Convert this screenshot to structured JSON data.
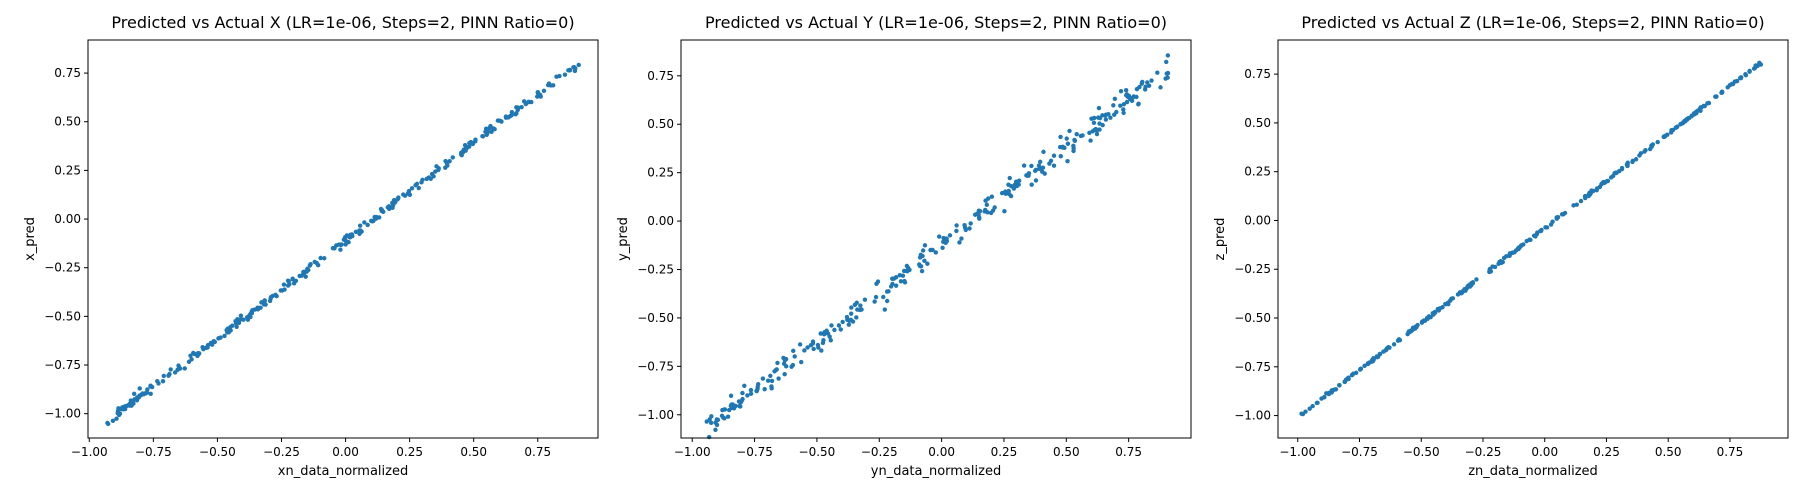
{
  "chart_data": [
    {
      "type": "scatter",
      "title": "Predicted vs Actual X (LR=1e-06, Steps=2, PINN Ratio=0)",
      "xlabel": "xn_data_normalized",
      "ylabel": "x_pred",
      "xlim": [
        -1.005,
        0.985
      ],
      "ylim": [
        -1.125,
        0.92
      ],
      "xticks": [
        -1.0,
        -0.75,
        -0.5,
        -0.25,
        0.0,
        0.25,
        0.5,
        0.75
      ],
      "xticklabels": [
        "−1.00",
        "−0.75",
        "−0.50",
        "−0.25",
        "0.00",
        "0.25",
        "0.50",
        "0.75"
      ],
      "yticks": [
        -1.0,
        -0.75,
        -0.5,
        -0.25,
        0.0,
        0.25,
        0.5,
        0.75
      ],
      "yticklabels": [
        "−1.00",
        "−0.75",
        "−0.50",
        "−0.25",
        "0.00",
        "0.25",
        "0.50",
        "0.75"
      ],
      "grid": false,
      "color": "#1f77b4",
      "point_count": 300,
      "x_range": [
        -0.93,
        0.91
      ],
      "slope": 1.0,
      "intercept": -0.11,
      "noise": 0.012,
      "seed": 11
    },
    {
      "type": "scatter",
      "title": "Predicted vs Actual Y (LR=1e-06, Steps=2, PINN Ratio=0)",
      "xlabel": "yn_data_normalized",
      "ylabel": "y_pred",
      "xlim": [
        -1.045,
        1.0
      ],
      "ylim": [
        -1.12,
        0.935
      ],
      "xticks": [
        -1.0,
        -0.75,
        -0.5,
        -0.25,
        0.0,
        0.25,
        0.5,
        0.75
      ],
      "xticklabels": [
        "−1.00",
        "−0.75",
        "−0.50",
        "−0.25",
        "0.00",
        "0.25",
        "0.50",
        "0.75"
      ],
      "yticks": [
        -1.0,
        -0.75,
        -0.5,
        -0.25,
        0.0,
        0.25,
        0.5,
        0.75
      ],
      "yticklabels": [
        "−1.00",
        "−0.75",
        "−0.50",
        "−0.25",
        "0.00",
        "0.25",
        "0.50",
        "0.75"
      ],
      "grid": false,
      "color": "#1f77b4",
      "point_count": 300,
      "x_range": [
        -0.95,
        0.91
      ],
      "slope": 1.0,
      "intercept": -0.12,
      "noise": 0.03,
      "seed": 23
    },
    {
      "type": "scatter",
      "title": "Predicted vs Actual Z (LR=1e-06, Steps=2, PINN Ratio=0)",
      "xlabel": "zn_data_normalized",
      "ylabel": "z_pred",
      "xlim": [
        -1.08,
        0.985
      ],
      "ylim": [
        -1.115,
        0.925
      ],
      "xticks": [
        -1.0,
        -0.75,
        -0.5,
        -0.25,
        0.0,
        0.25,
        0.5,
        0.75
      ],
      "xticklabels": [
        "−1.00",
        "−0.75",
        "−0.50",
        "−0.25",
        "0.00",
        "0.25",
        "0.50",
        "0.75"
      ],
      "yticks": [
        -1.0,
        -0.75,
        -0.5,
        -0.25,
        0.0,
        0.25,
        0.5,
        0.75
      ],
      "yticklabels": [
        "−1.00",
        "−0.75",
        "−0.50",
        "−0.25",
        "0.00",
        "0.25",
        "0.50",
        "0.75"
      ],
      "grid": false,
      "color": "#1f77b4",
      "point_count": 300,
      "x_range": [
        -0.99,
        0.88
      ],
      "slope": 0.97,
      "intercept": -0.04,
      "noise": 0.004,
      "seed": 37
    }
  ]
}
